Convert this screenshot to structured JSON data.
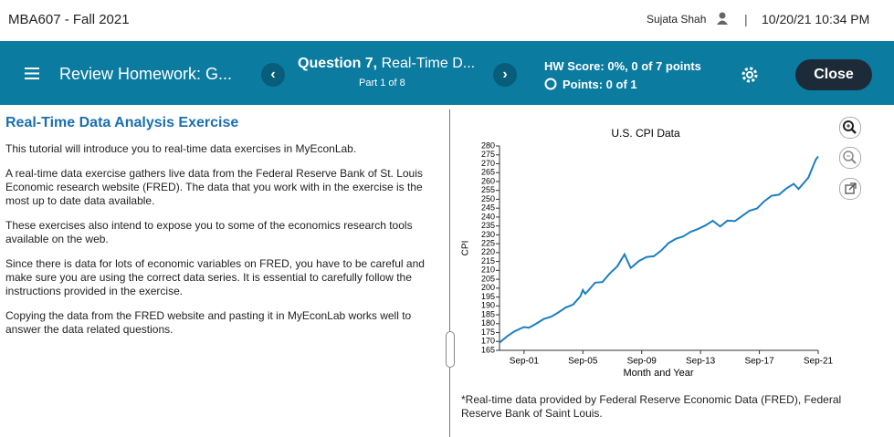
{
  "header": {
    "course": "MBA607 - Fall 2021",
    "user": "Sujata Shah",
    "separator": "|",
    "datetime": "10/20/21 10:34 PM"
  },
  "nav": {
    "title": "Review Homework: G...",
    "question_label": "Question 7,",
    "question_title": "Real-Time D...",
    "part": "Part 1 of 8",
    "hw_score": "HW Score: 0%, 0 of 7 points",
    "points": "Points: 0 of 1",
    "close": "Close"
  },
  "content": {
    "title": "Real-Time Data Analysis Exercise",
    "paragraphs": [
      "This tutorial will introduce you to real-time data exercises in MyEconLab.",
      "A real-time data exercise gathers live data from the Federal Reserve Bank of St. Louis Economic research website (FRED). The data that you work with in the exercise is the most up to date data available.",
      "These exercises also intend to expose you to some of the economics research tools available on the web.",
      "Since there is data for lots of economic variables on FRED, you have to be careful and make sure you are using the correct data series. It is essential to carefully follow the instructions provided in the exercise.",
      "Copying the data from the FRED website and pasting it in MyEconLab works well to answer the data related questions."
    ]
  },
  "chart_data": {
    "type": "line",
    "title": "U.S. CPI Data",
    "x_label": "Month and Year",
    "y_label": "CPI",
    "color": "#1a7fc0",
    "x": [
      "Jan-00",
      "Jul-00",
      "Jan-01",
      "Jul-01",
      "Sep-01",
      "Jan-02",
      "Jul-02",
      "Jan-03",
      "Jul-03",
      "Jan-04",
      "Jul-04",
      "Jan-05",
      "Jul-05",
      "Sep-05",
      "Nov-05",
      "Jan-06",
      "Jul-06",
      "Jan-07",
      "Jul-07",
      "Jan-08",
      "Jul-08",
      "Dec-08",
      "Jan-09",
      "Jul-09",
      "Jan-10",
      "Jul-10",
      "Jan-11",
      "Jul-11",
      "Jan-12",
      "Jul-12",
      "Jan-13",
      "Jul-13",
      "Jan-14",
      "Jul-14",
      "Jan-15",
      "Jul-15",
      "Jan-16",
      "Jul-16",
      "Jan-17",
      "Jul-17",
      "Jan-18",
      "Jul-18",
      "Jan-19",
      "Jul-19",
      "Jan-20",
      "May-20",
      "Jan-21",
      "Jul-21",
      "Sep-21"
    ],
    "values": [
      169.3,
      172.8,
      175.6,
      177.5,
      178.1,
      177.7,
      180.0,
      182.6,
      183.9,
      186.3,
      189.1,
      190.7,
      195.4,
      198.9,
      196.8,
      198.3,
      203.1,
      203.4,
      208.3,
      212.2,
      219.0,
      211.4,
      211.9,
      215.4,
      217.5,
      218.0,
      221.2,
      225.4,
      227.8,
      229.1,
      231.7,
      233.3,
      235.3,
      237.9,
      234.7,
      238.0,
      237.7,
      240.6,
      243.6,
      244.8,
      248.9,
      252.0,
      252.6,
      256.1,
      258.7,
      255.8,
      262.2,
      272.3,
      274.1
    ],
    "xlim": [
      "Jan-00",
      "Sep-21"
    ],
    "xticks": [
      "Sep-01",
      "Sep-05",
      "Sep-09",
      "Sep-13",
      "Sep-17",
      "Sep-21"
    ],
    "ylim": [
      165,
      280
    ],
    "yticks": [
      165,
      170,
      175,
      180,
      185,
      190,
      195,
      200,
      205,
      210,
      215,
      220,
      225,
      230,
      235,
      240,
      245,
      250,
      255,
      260,
      265,
      270,
      275,
      280
    ]
  },
  "footnote": "*Real-time data provided by Federal Reserve Economic Data (FRED), Federal Reserve Bank of Saint Louis."
}
